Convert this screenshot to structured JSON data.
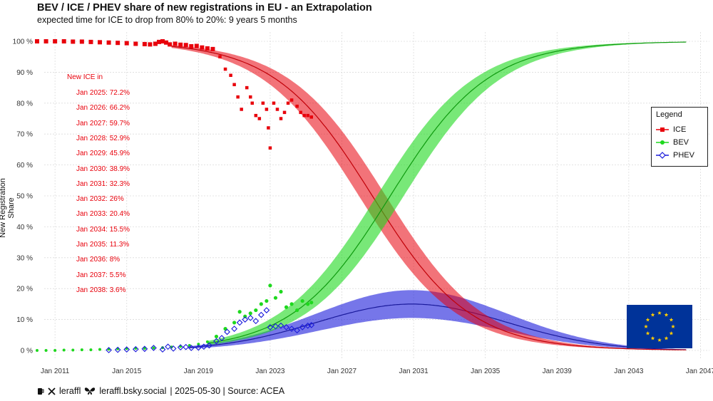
{
  "title": "BEV / ICE / PHEV share of new registrations in EU - an Extrapolation",
  "subtitle": "expected time for ICE to drop from 80% to 20%: 9 years 5 months",
  "footer": {
    "handle_x": "leraffl",
    "handle_bsky": "leraffl.bsky.social",
    "info": "| 2025-05-30 | Source: ACEA"
  },
  "legend": {
    "title": "Legend",
    "items": [
      {
        "name": "ICE",
        "color": "#e8000b",
        "marker": "square"
      },
      {
        "name": "BEV",
        "color": "#1ed81e",
        "marker": "circle"
      },
      {
        "name": "PHEV",
        "color": "#1a1adb",
        "marker": "diamond-open"
      }
    ]
  },
  "annotation": {
    "header": "New ICE in",
    "lines": [
      "Jan 2025: 72.2%",
      "Jan 2026: 66.2%",
      "Jan 2027: 59.7%",
      "Jan 2028: 52.9%",
      "Jan 2029: 45.9%",
      "Jan 2030: 38.9%",
      "Jan 2031: 32.3%",
      "Jan 2032: 26%",
      "Jan 2033: 20.4%",
      "Jan 2034: 15.5%",
      "Jan 2035: 11.3%",
      "Jan 2036: 8%",
      "Jan 2037: 5.5%",
      "Jan 2038: 3.6%"
    ]
  },
  "chart_data": {
    "type": "scatter",
    "title": "BEV / ICE / PHEV share of new registrations in EU - an Extrapolation",
    "subtitle": "expected time for ICE to drop from 80% to 20%: 9 years 5 months",
    "xlabel": "",
    "ylabel": "New Registration Share",
    "x_range": [
      2010.0,
      2047.5
    ],
    "ylim": [
      -3,
      103
    ],
    "x_ticks": [
      {
        "value": 2011,
        "label": "Jan 2011"
      },
      {
        "value": 2015,
        "label": "Jan 2015"
      },
      {
        "value": 2019,
        "label": "Jan 2019"
      },
      {
        "value": 2023,
        "label": "Jan 2023"
      },
      {
        "value": 2027,
        "label": "Jan 2027"
      },
      {
        "value": 2031,
        "label": "Jan 2031"
      },
      {
        "value": 2035,
        "label": "Jan 2035"
      },
      {
        "value": 2039,
        "label": "Jan 2039"
      },
      {
        "value": 2043,
        "label": "Jan 2043"
      },
      {
        "value": 2047,
        "label": "Jan 2047"
      }
    ],
    "y_ticks": [
      {
        "value": 0,
        "label": "0 %"
      },
      {
        "value": 10,
        "label": "10 %"
      },
      {
        "value": 20,
        "label": "20 %"
      },
      {
        "value": 30,
        "label": "30 %"
      },
      {
        "value": 40,
        "label": "40 %"
      },
      {
        "value": 50,
        "label": "50 %"
      },
      {
        "value": 60,
        "label": "60 %"
      },
      {
        "value": 70,
        "label": "70 %"
      },
      {
        "value": 80,
        "label": "80 %"
      },
      {
        "value": 90,
        "label": "90 %"
      },
      {
        "value": 100,
        "label": "100 %"
      }
    ],
    "grid": true,
    "legend_position": "right",
    "series": [
      {
        "name": "ICE",
        "color": "#e8000b",
        "kind": "points+trend",
        "observed": [
          [
            2010.0,
            100
          ],
          [
            2010.5,
            100
          ],
          [
            2011.0,
            100
          ],
          [
            2011.5,
            100
          ],
          [
            2012.0,
            99.9
          ],
          [
            2012.5,
            99.9
          ],
          [
            2013.0,
            99.8
          ],
          [
            2013.5,
            99.7
          ],
          [
            2014.0,
            99.6
          ],
          [
            2014.5,
            99.5
          ],
          [
            2015.0,
            99.4
          ],
          [
            2015.5,
            99.2
          ],
          [
            2016.0,
            99.1
          ],
          [
            2016.3,
            99.0
          ],
          [
            2016.6,
            99.2
          ],
          [
            2016.8,
            99.8
          ],
          [
            2017.0,
            100
          ],
          [
            2017.2,
            99.6
          ],
          [
            2017.4,
            99.0
          ],
          [
            2017.7,
            99.2
          ],
          [
            2018.0,
            98.9
          ],
          [
            2018.3,
            98.8
          ],
          [
            2018.6,
            98.4
          ],
          [
            2018.9,
            98.5
          ],
          [
            2019.2,
            98.0
          ],
          [
            2019.5,
            97.7
          ],
          [
            2019.8,
            97.5
          ],
          [
            2020.2,
            95
          ],
          [
            2020.5,
            91
          ],
          [
            2020.8,
            89
          ],
          [
            2021.0,
            86
          ],
          [
            2021.2,
            82
          ],
          [
            2021.4,
            78
          ],
          [
            2021.7,
            85
          ],
          [
            2021.9,
            82
          ],
          [
            2022.0,
            80
          ],
          [
            2022.2,
            76
          ],
          [
            2022.4,
            75
          ],
          [
            2022.6,
            80
          ],
          [
            2022.8,
            78
          ],
          [
            2022.9,
            72
          ],
          [
            2023.0,
            65.5
          ],
          [
            2023.2,
            80
          ],
          [
            2023.4,
            78
          ],
          [
            2023.6,
            75
          ],
          [
            2023.8,
            77
          ],
          [
            2024.0,
            80
          ],
          [
            2024.2,
            81
          ],
          [
            2024.5,
            79
          ],
          [
            2024.7,
            77
          ],
          [
            2024.9,
            76
          ],
          [
            2025.1,
            76
          ],
          [
            2025.3,
            75.5
          ]
        ],
        "trend_center": 2028.7,
        "trend_scale": 2.73,
        "trend_band_width": 1.5
      },
      {
        "name": "BEV",
        "color": "#1ed81e",
        "kind": "points+trend",
        "observed": [
          [
            2010.0,
            0
          ],
          [
            2010.5,
            0
          ],
          [
            2011.0,
            0
          ],
          [
            2011.5,
            0.1
          ],
          [
            2012.0,
            0.1
          ],
          [
            2012.5,
            0.2
          ],
          [
            2013.0,
            0.2
          ],
          [
            2013.5,
            0.3
          ],
          [
            2014.0,
            0.4
          ],
          [
            2014.5,
            0.5
          ],
          [
            2015.0,
            0.6
          ],
          [
            2015.5,
            0.7
          ],
          [
            2016.0,
            0.7
          ],
          [
            2016.5,
            0.8
          ],
          [
            2017.0,
            0.9
          ],
          [
            2017.5,
            1.1
          ],
          [
            2018.0,
            1.3
          ],
          [
            2018.5,
            1.6
          ],
          [
            2019.0,
            2.0
          ],
          [
            2019.5,
            2.8
          ],
          [
            2020.0,
            4.5
          ],
          [
            2020.5,
            7
          ],
          [
            2021.0,
            9
          ],
          [
            2021.3,
            12.5
          ],
          [
            2021.6,
            11
          ],
          [
            2021.9,
            12
          ],
          [
            2022.2,
            13
          ],
          [
            2022.5,
            15
          ],
          [
            2022.8,
            16
          ],
          [
            2023.0,
            21
          ],
          [
            2023.3,
            17
          ],
          [
            2023.6,
            19
          ],
          [
            2023.9,
            14
          ],
          [
            2024.2,
            15
          ],
          [
            2024.5,
            13
          ],
          [
            2024.8,
            16
          ],
          [
            2025.1,
            15
          ],
          [
            2025.3,
            15.5
          ]
        ],
        "trend_center": 2029.7,
        "trend_scale": 2.73,
        "trend_band_width": 1.5
      },
      {
        "name": "PHEV",
        "color": "#1a1adb",
        "kind": "points+trend",
        "observed": [
          [
            2014.0,
            0.1
          ],
          [
            2014.5,
            0.2
          ],
          [
            2015.0,
            0.3
          ],
          [
            2015.5,
            0.4
          ],
          [
            2016.0,
            0.5
          ],
          [
            2016.5,
            0.8
          ],
          [
            2017.0,
            0.3
          ],
          [
            2017.3,
            1.2
          ],
          [
            2017.6,
            0.6
          ],
          [
            2018.0,
            1.0
          ],
          [
            2018.3,
            1.1
          ],
          [
            2018.6,
            0.8
          ],
          [
            2019.0,
            0.9
          ],
          [
            2019.3,
            1.2
          ],
          [
            2019.6,
            1.6
          ],
          [
            2020.0,
            3
          ],
          [
            2020.3,
            4
          ],
          [
            2020.6,
            6
          ],
          [
            2021.0,
            7
          ],
          [
            2021.3,
            9
          ],
          [
            2021.6,
            10
          ],
          [
            2021.9,
            10.5
          ],
          [
            2022.2,
            9.5
          ],
          [
            2022.5,
            11.5
          ],
          [
            2022.8,
            13
          ],
          [
            2023.0,
            7.5
          ],
          [
            2023.3,
            7.8
          ],
          [
            2023.6,
            8
          ],
          [
            2023.9,
            7.5
          ],
          [
            2024.2,
            7.0
          ],
          [
            2024.5,
            6.5
          ],
          [
            2024.8,
            7.5
          ],
          [
            2025.1,
            8
          ],
          [
            2025.3,
            8.2
          ]
        ],
        "trend_peak_x": 2030.9,
        "trend_peak_y": 15,
        "trend_sigma": 5.3,
        "trend_band_peak": 4.5
      }
    ],
    "inset_image": "eu-flag",
    "annotation_header": "New ICE in",
    "annotation_lines": [
      "Jan 2025: 72.2%",
      "Jan 2026: 66.2%",
      "Jan 2027: 59.7%",
      "Jan 2028: 52.9%",
      "Jan 2029: 45.9%",
      "Jan 2030: 38.9%",
      "Jan 2031: 32.3%",
      "Jan 2032: 26%",
      "Jan 2033: 20.4%",
      "Jan 2034: 15.5%",
      "Jan 2035: 11.3%",
      "Jan 2036: 8%",
      "Jan 2037: 5.5%",
      "Jan 2038: 3.6%"
    ]
  }
}
